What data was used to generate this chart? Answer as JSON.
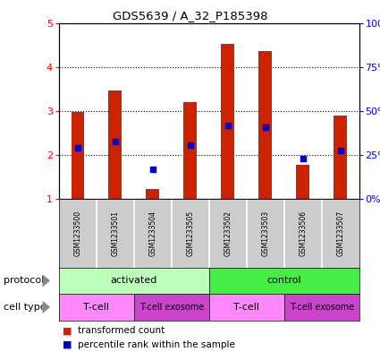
{
  "title": "GDS5639 / A_32_P185398",
  "samples": [
    "GSM1233500",
    "GSM1233501",
    "GSM1233504",
    "GSM1233505",
    "GSM1233502",
    "GSM1233503",
    "GSM1233506",
    "GSM1233507"
  ],
  "transformed_counts": [
    2.97,
    3.47,
    1.22,
    3.2,
    4.53,
    4.35,
    1.78,
    2.9
  ],
  "percentile_ranks": [
    2.17,
    2.3,
    1.68,
    2.22,
    2.67,
    2.62,
    1.91,
    2.1
  ],
  "ylim": [
    1,
    5
  ],
  "yticks_left": [
    1,
    2,
    3,
    4,
    5
  ],
  "bar_color": "#cc2200",
  "dot_color": "#0000cc",
  "protocol_color_activated": "#bbffbb",
  "protocol_color_control": "#44ee44",
  "cell_tcell_color": "#ff88ff",
  "cell_exosome_color": "#cc44cc",
  "legend_bar_label": "transformed count",
  "legend_dot_label": "percentile rank within the sample",
  "bar_width": 0.35,
  "background_color": "#ffffff"
}
